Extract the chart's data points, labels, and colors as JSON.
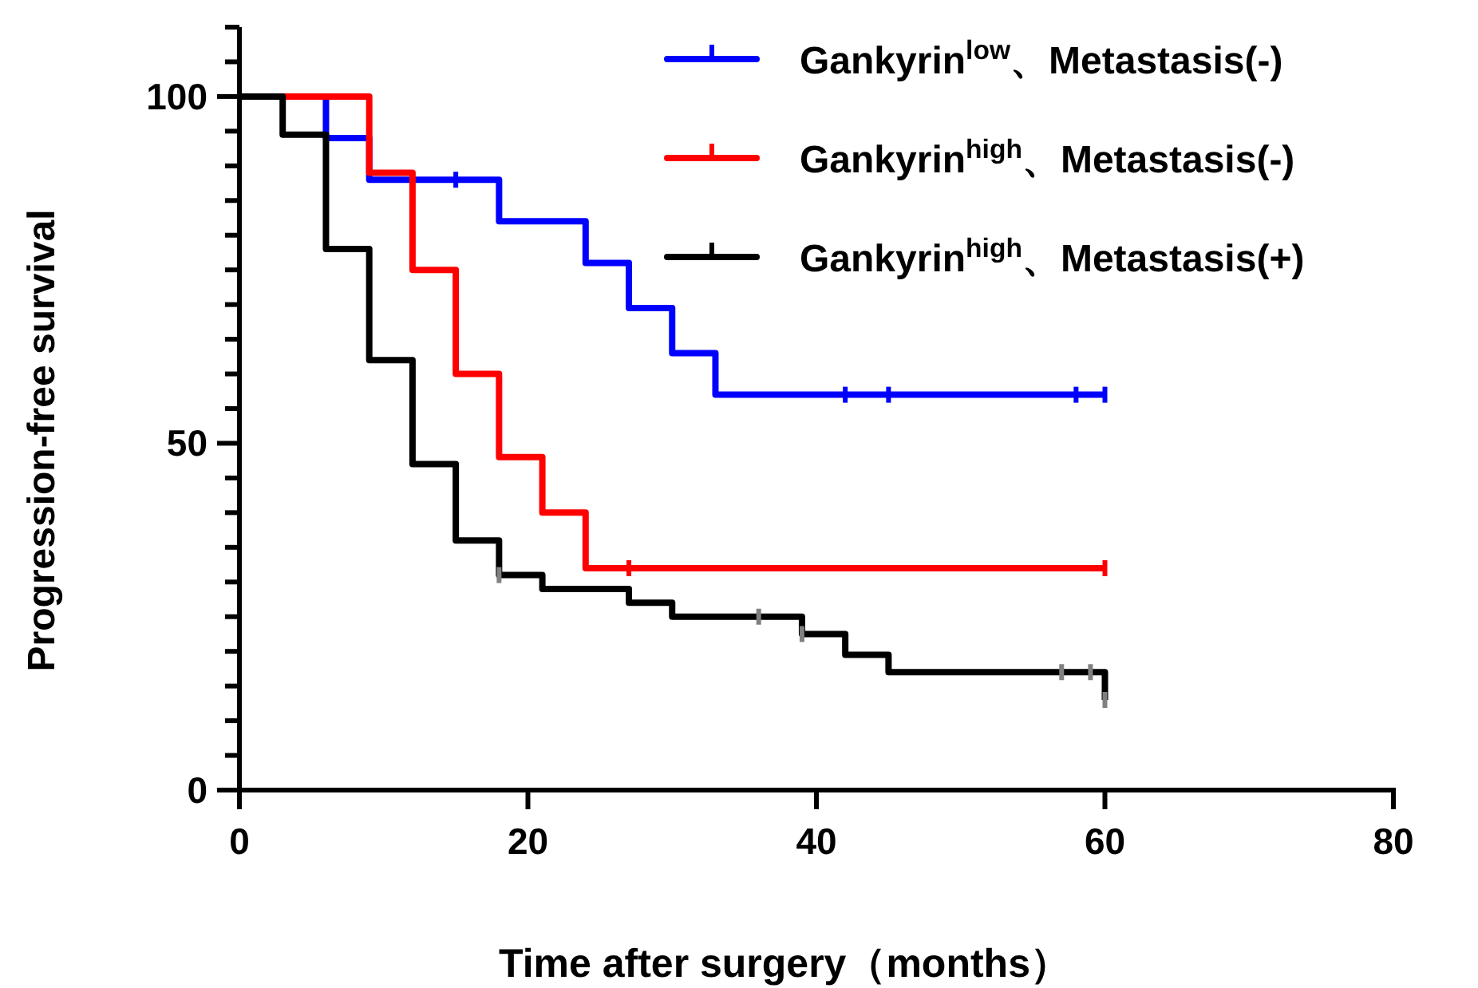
{
  "chart_data": {
    "type": "step",
    "xlabel": "Time after surgery（months）",
    "ylabel": "Progression-free survival",
    "xlim": [
      0,
      80
    ],
    "xticks": [
      0,
      20,
      40,
      60,
      80
    ],
    "ylim": [
      0,
      110
    ],
    "yticks": [
      0,
      {
        "value": 5,
        "label": null
      },
      {
        "value": 10,
        "label": null
      },
      {
        "value": 15,
        "label": null
      },
      {
        "value": 20,
        "label": null
      },
      {
        "value": 25,
        "label": null
      },
      {
        "value": 30,
        "label": null
      },
      {
        "value": 35,
        "label": null
      },
      {
        "value": 40,
        "label": null
      },
      {
        "value": 45,
        "label": null
      },
      50,
      {
        "value": 55,
        "label": null
      },
      {
        "value": 60,
        "label": null
      },
      {
        "value": 65,
        "label": null
      },
      {
        "value": 70,
        "label": null
      },
      {
        "value": 75,
        "label": null
      },
      {
        "value": 80,
        "label": null
      },
      {
        "value": 85,
        "label": null
      },
      {
        "value": 90,
        "label": null
      },
      {
        "value": 95,
        "label": null
      },
      100,
      {
        "value": 105,
        "label": null
      },
      {
        "value": 110,
        "label": null
      }
    ],
    "grid": false,
    "legend": "top right",
    "series": [
      {
        "name": "Gankyrin$^{low}$、Metastasis(-)",
        "color": "#0000ff",
        "x": [
          0,
          6,
          9,
          18,
          24,
          27,
          30,
          33,
          60
        ],
        "values": [
          100,
          94,
          88,
          82,
          76,
          69.5,
          63,
          57,
          57
        ]
      },
      {
        "name": "Gankyrin$^{high}$、Metastasis(-)",
        "color": "#ff0000",
        "x": [
          0,
          9,
          12,
          15,
          18,
          21,
          24,
          60
        ],
        "values": [
          100,
          89,
          75,
          60,
          48,
          40,
          32,
          32
        ]
      },
      {
        "name": "Gankyrin$^{high}$、Metastasis(+)",
        "color": "#000000",
        "x": [
          0,
          3,
          6,
          9,
          12,
          15,
          18,
          21,
          27,
          30,
          39,
          42,
          45,
          60
        ],
        "values": [
          100,
          94.5,
          78,
          62,
          47,
          36,
          31,
          29,
          27,
          25,
          22.5,
          19.5,
          17,
          13
        ]
      },
      {
        "type": "scatter",
        "color": "#0000ff",
        "x": [
          15,
          42,
          45,
          58,
          60
        ],
        "values": [
          88,
          57,
          57,
          57,
          57
        ]
      },
      {
        "type": "scatter",
        "color": "#ff0000",
        "x": [
          27,
          60
        ],
        "values": [
          32,
          32
        ]
      },
      {
        "type": "scatter",
        "color": "#808080",
        "x": [
          18,
          36,
          39,
          57,
          59,
          60
        ],
        "values": [
          31,
          25,
          22.5,
          17,
          17,
          13
        ]
      }
    ]
  }
}
